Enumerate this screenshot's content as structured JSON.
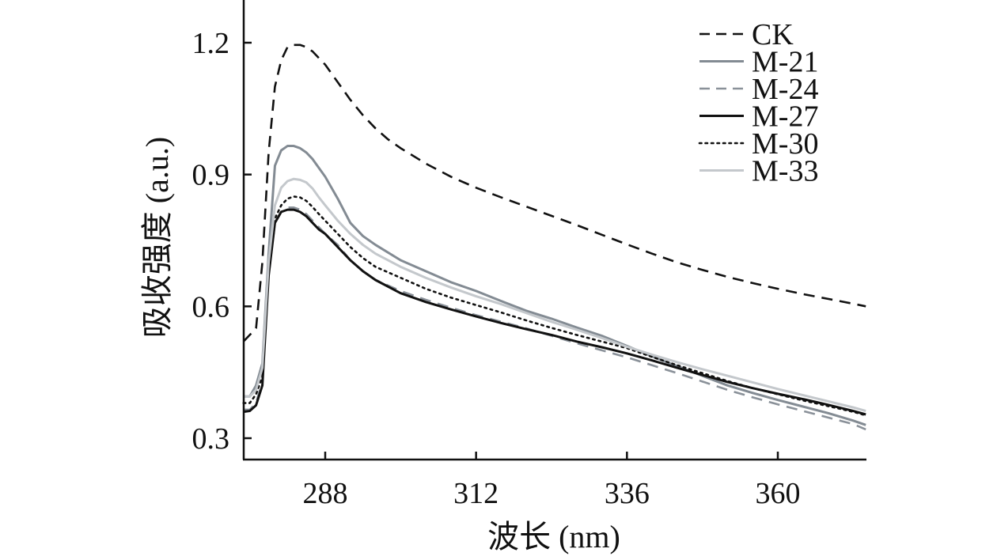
{
  "chart_data": {
    "type": "line",
    "xlabel": "波长 (nm)",
    "ylabel": "吸收强度 (a.u.)",
    "xlim": [
      275,
      374
    ],
    "ylim": [
      0.25,
      1.3
    ],
    "xticks": [
      288,
      312,
      336,
      360
    ],
    "yticks": [
      0.3,
      0.6,
      0.9,
      1.2
    ],
    "xtick_labels": [
      "288",
      "312",
      "336",
      "360"
    ],
    "ytick_labels": [
      "0.3",
      "0.6",
      "0.9",
      "1.2"
    ],
    "legend_position": "top-right",
    "series": [
      {
        "name": "CK",
        "style": "dashed",
        "color": "#111111",
        "x": [
          275,
          277,
          278,
          279,
          280,
          281,
          282,
          283,
          284,
          285,
          286,
          287,
          288,
          290,
          292,
          294,
          296,
          298,
          300,
          304,
          308,
          312,
          316,
          320,
          324,
          328,
          332,
          336,
          340,
          344,
          348,
          352,
          356,
          360,
          364,
          368,
          372,
          374
        ],
        "values": [
          0.52,
          0.55,
          0.7,
          0.95,
          1.1,
          1.16,
          1.19,
          1.195,
          1.195,
          1.19,
          1.18,
          1.165,
          1.15,
          1.11,
          1.07,
          1.035,
          1.005,
          0.98,
          0.96,
          0.925,
          0.895,
          0.87,
          0.848,
          0.827,
          0.806,
          0.785,
          0.763,
          0.741,
          0.72,
          0.7,
          0.683,
          0.667,
          0.653,
          0.64,
          0.628,
          0.617,
          0.606,
          0.6
        ]
      },
      {
        "name": "M-21",
        "style": "solid",
        "color": "#838b93",
        "x": [
          275,
          276,
          277,
          278,
          279,
          280,
          281,
          282,
          283,
          284,
          285,
          286,
          287,
          288,
          290,
          292,
          294,
          296,
          300,
          304,
          308,
          312,
          316,
          320,
          324,
          328,
          332,
          336,
          340,
          344,
          348,
          352,
          356,
          360,
          364,
          368,
          372,
          374
        ],
        "values": [
          0.395,
          0.395,
          0.42,
          0.47,
          0.72,
          0.92,
          0.955,
          0.965,
          0.965,
          0.96,
          0.95,
          0.935,
          0.915,
          0.895,
          0.845,
          0.79,
          0.76,
          0.74,
          0.705,
          0.68,
          0.655,
          0.635,
          0.612,
          0.59,
          0.572,
          0.552,
          0.533,
          0.51,
          0.486,
          0.464,
          0.442,
          0.42,
          0.403,
          0.387,
          0.372,
          0.357,
          0.34,
          0.33
        ]
      },
      {
        "name": "M-24",
        "style": "dashed",
        "color": "#8a9199",
        "x": [
          275,
          276,
          277,
          278,
          279,
          280,
          281,
          282,
          283,
          284,
          285,
          286,
          287,
          288,
          290,
          292,
          294,
          296,
          300,
          304,
          308,
          312,
          316,
          320,
          324,
          328,
          332,
          336,
          340,
          344,
          348,
          352,
          356,
          360,
          364,
          368,
          372,
          374
        ],
        "values": [
          0.365,
          0.365,
          0.38,
          0.43,
          0.67,
          0.79,
          0.815,
          0.825,
          0.825,
          0.82,
          0.81,
          0.795,
          0.78,
          0.765,
          0.74,
          0.705,
          0.68,
          0.66,
          0.635,
          0.615,
          0.597,
          0.58,
          0.565,
          0.55,
          0.533,
          0.516,
          0.5,
          0.484,
          0.466,
          0.448,
          0.429,
          0.41,
          0.393,
          0.377,
          0.362,
          0.347,
          0.332,
          0.32
        ]
      },
      {
        "name": "M-27",
        "style": "solid",
        "color": "#111111",
        "x": [
          275,
          276,
          277,
          278,
          279,
          280,
          281,
          282,
          283,
          284,
          285,
          286,
          287,
          288,
          290,
          292,
          294,
          296,
          300,
          304,
          308,
          312,
          316,
          320,
          324,
          328,
          332,
          336,
          340,
          344,
          348,
          352,
          356,
          360,
          364,
          368,
          372,
          374
        ],
        "values": [
          0.36,
          0.362,
          0.375,
          0.42,
          0.67,
          0.79,
          0.815,
          0.82,
          0.82,
          0.815,
          0.805,
          0.79,
          0.775,
          0.765,
          0.735,
          0.705,
          0.68,
          0.66,
          0.63,
          0.61,
          0.593,
          0.577,
          0.562,
          0.548,
          0.535,
          0.52,
          0.507,
          0.493,
          0.477,
          0.46,
          0.444,
          0.428,
          0.414,
          0.401,
          0.389,
          0.376,
          0.362,
          0.354
        ]
      },
      {
        "name": "M-30",
        "style": "dotted",
        "color": "#111111",
        "x": [
          275,
          276,
          277,
          278,
          279,
          280,
          281,
          282,
          283,
          284,
          285,
          286,
          287,
          288,
          290,
          292,
          294,
          296,
          300,
          304,
          308,
          312,
          316,
          320,
          324,
          328,
          332,
          336,
          340,
          344,
          348,
          352,
          356,
          360,
          364,
          368,
          372,
          374
        ],
        "values": [
          0.38,
          0.38,
          0.4,
          0.44,
          0.68,
          0.8,
          0.83,
          0.845,
          0.85,
          0.848,
          0.84,
          0.826,
          0.81,
          0.795,
          0.765,
          0.735,
          0.71,
          0.69,
          0.665,
          0.64,
          0.62,
          0.603,
          0.586,
          0.568,
          0.551,
          0.535,
          0.52,
          0.505,
          0.485,
          0.466,
          0.448,
          0.43,
          0.414,
          0.4,
          0.386,
          0.373,
          0.36,
          0.352
        ]
      },
      {
        "name": "M-33",
        "style": "solid",
        "color": "#c4c8cc",
        "x": [
          275,
          276,
          277,
          278,
          279,
          280,
          281,
          282,
          283,
          284,
          285,
          286,
          287,
          288,
          290,
          292,
          294,
          296,
          300,
          304,
          308,
          312,
          316,
          320,
          324,
          328,
          332,
          336,
          340,
          344,
          348,
          352,
          356,
          360,
          364,
          368,
          372,
          374
        ],
        "values": [
          0.395,
          0.395,
          0.41,
          0.46,
          0.7,
          0.83,
          0.87,
          0.885,
          0.89,
          0.888,
          0.882,
          0.868,
          0.848,
          0.83,
          0.795,
          0.765,
          0.74,
          0.72,
          0.69,
          0.665,
          0.643,
          0.623,
          0.605,
          0.585,
          0.565,
          0.547,
          0.528,
          0.508,
          0.49,
          0.473,
          0.457,
          0.442,
          0.427,
          0.412,
          0.398,
          0.384,
          0.37,
          0.362
        ]
      }
    ]
  }
}
